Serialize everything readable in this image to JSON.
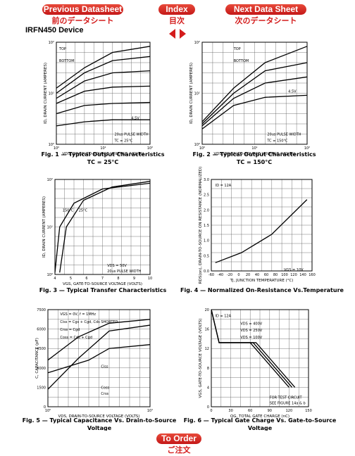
{
  "nav": {
    "previous": {
      "label": "Previous Datasheet",
      "label_ja": "前のデータシート"
    },
    "index": {
      "label": "Index",
      "label_ja": "目次"
    },
    "next": {
      "label": "Next Data Sheet",
      "label_ja": "次のデータシート"
    }
  },
  "title": "IRFN450 Device",
  "figures": [
    {
      "caption": [
        "Fig. 1 — Typical Output Characteristics",
        "TC = 25°C"
      ],
      "x_label": "VDS, DRAIN-TO-SOURCE VOLTAGE (VOLTS)",
      "y_label": "ID, DRAIN CURRENT (AMPERES)",
      "x_ticks": [
        "10⁰",
        "10¹",
        "10²"
      ],
      "y_ticks": [
        "10⁰",
        "10¹",
        "10²"
      ],
      "annotations": [
        "TOP",
        "BOTTOM",
        "4.5V",
        "20us PULSE WIDTH",
        "TC = 25°C"
      ]
    },
    {
      "caption": [
        "Fig. 2 — Typical Output Characteristics",
        "TC = 150°C"
      ],
      "x_label": "VDS, DRAIN-TO-SOURCE VOLTAGE (VOLTS)",
      "y_label": "ID, DRAIN CURRENT (AMPERES)",
      "x_ticks": [
        "10⁰",
        "10¹",
        "10²"
      ],
      "y_ticks": [
        "10⁰",
        "10¹",
        "10²"
      ],
      "annotations": [
        "TOP",
        "BOTTOM",
        "4.5V",
        "20us PULSE WIDTH",
        "TC = 150°C"
      ]
    },
    {
      "caption": [
        "Fig. 3 — Typical Transfer Characteristics"
      ],
      "x_label": "VGS, GATE-TO-SOURCE VOLTAGE (VOLTS)",
      "y_label": "ID, DRAIN CURRENT (AMPERES)",
      "x_ticks": [
        "4",
        "5",
        "6",
        "7",
        "8",
        "9",
        "10"
      ],
      "y_ticks": [
        "10⁰",
        "10¹",
        "10²"
      ],
      "annotations": [
        "150°C",
        "25°C",
        "VDS = 50V",
        "20us PULSE WIDTH"
      ]
    },
    {
      "caption": [
        "Fig. 4 — Normalized On-Resistance Vs.Temperature"
      ],
      "x_label": "TJ, JUNCTION TEMPERATURE (°C)",
      "y_label": "RDS(on), DRAIN-TO-SOURCE ON RESISTANCE (NORMALIZED)",
      "x_ticks": [
        "-60",
        "-40",
        "-20",
        "0",
        "20",
        "40",
        "60",
        "80",
        "100",
        "120",
        "140",
        "160"
      ],
      "y_ticks": [
        "0.0",
        "0.5",
        "1.0",
        "1.5",
        "2.0",
        "2.5",
        "3.0"
      ],
      "annotations": [
        "ID = 12A",
        "VGS = 10V"
      ]
    },
    {
      "caption": [
        "Fig. 5 — Typical Capacitance Vs. Drain-to-Source",
        "Voltage"
      ],
      "x_label": "VDS, DRAIN-TO-SOURCE VOLTAGE (VOLTS)",
      "y_label": "C, CAPACITANCE (pF)",
      "x_ticks": [
        "10⁰",
        "10¹"
      ],
      "y_ticks": [
        "0",
        "1500",
        "3000",
        "4500",
        "6000",
        "7500"
      ],
      "annotations": [
        "VGS = 0V, f = 1MHz",
        "Ciss = Cgs + Cgd, Cds SHORTED",
        "Crss = Cgd",
        "Coss = Cds + Cgd",
        "Ciss",
        "Coss",
        "Crss"
      ]
    },
    {
      "caption": [
        "Fig. 6 — Typical Gate Charge Vs. Gate-to-Source",
        "Voltage"
      ],
      "x_label": "QG, TOTAL GATE CHARGE (nC)",
      "y_label": "VGS, GATE-TO-SOURCE VOLTAGE (VOLTS)",
      "x_ticks": [
        "0",
        "30",
        "60",
        "90",
        "120",
        "150"
      ],
      "y_ticks": [
        "0",
        "4",
        "8",
        "12",
        "16",
        "20"
      ],
      "annotations": [
        "ID = 12A",
        "VDS = 400V",
        "VDS = 250V",
        "VDS = 100V",
        "FOR TEST CIRCUIT",
        "SEE FIGURE 14a & b"
      ]
    }
  ],
  "order": {
    "label": "To Order",
    "label_ja": "ご注文"
  }
}
